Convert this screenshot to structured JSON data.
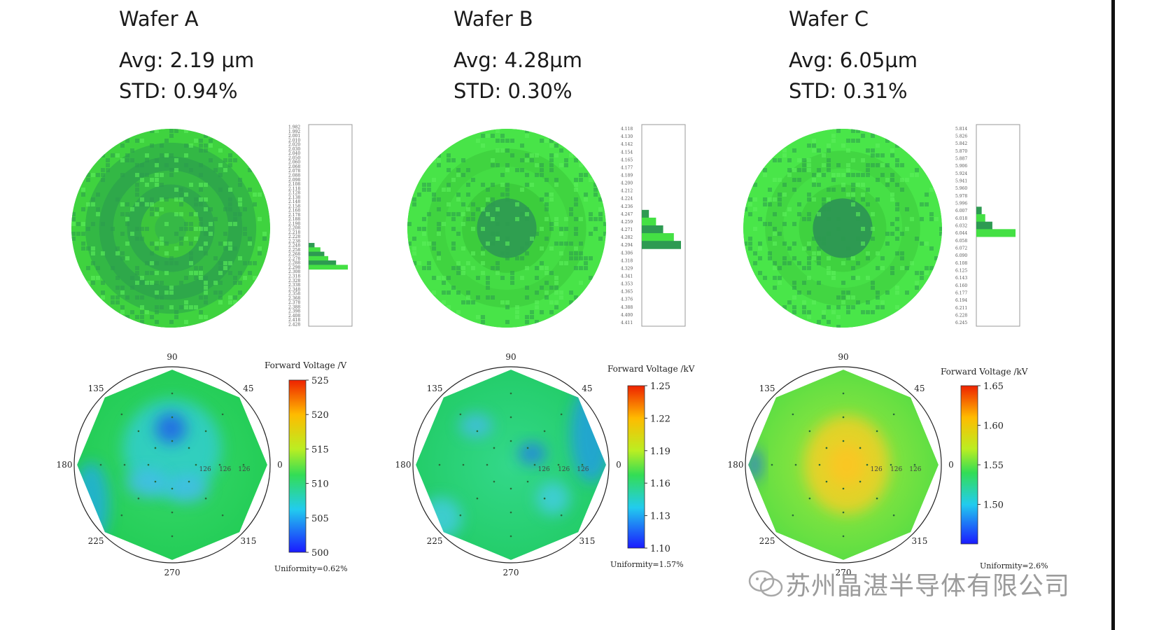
{
  "headers": [
    {
      "name": "Wafer A",
      "avg": "Avg: 2.19 µm",
      "std": "STD: 0.94%"
    },
    {
      "name": "Wafer B",
      "avg": "Avg: 4.28µm",
      "std": "STD: 0.30%"
    },
    {
      "name": "Wafer C",
      "avg": "Avg: 6.05µm",
      "std": "STD: 0.31%"
    }
  ],
  "colors": {
    "wafer_light": "#44e044",
    "wafer_dark": "#2ea84a",
    "wafer_mid": "#3bcb3b",
    "scale_low": "#1a1aff",
    "scale_high": "#ee2200"
  },
  "chart_data": [
    {
      "type": "heatmap",
      "title": "Wafer A",
      "histogram_scale_labels": [
        "1.982",
        "1.992",
        "2.001",
        "2.010",
        "2.020",
        "2.030",
        "2.040",
        "2.050",
        "2.060",
        "2.068",
        "2.078",
        "2.088",
        "2.098",
        "2.108",
        "2.118",
        "2.128",
        "2.138",
        "2.148",
        "2.158",
        "2.168",
        "2.178",
        "2.188",
        "2.198",
        "2.208",
        "2.218",
        "2.228",
        "2.238",
        "2.248",
        "2.258",
        "2.268",
        "2.278",
        "2.288",
        "2.298",
        "2.308",
        "2.318",
        "2.328",
        "2.338",
        "2.348",
        "2.358",
        "2.368",
        "2.378",
        "2.388",
        "2.398",
        "2.408",
        "2.418",
        "2.428"
      ],
      "histogram_counts": [
        0,
        0,
        0,
        0,
        0,
        0,
        0,
        0,
        0,
        0,
        0,
        0,
        0,
        0,
        0,
        0,
        0,
        0,
        0,
        0,
        0,
        0,
        0,
        0,
        0,
        0,
        0,
        3,
        6,
        8,
        10,
        14,
        20,
        0,
        0,
        0,
        0,
        0,
        0,
        0,
        0,
        0,
        0,
        0,
        0,
        0
      ]
    },
    {
      "type": "heatmap",
      "title": "Wafer B",
      "histogram_scale_labels": [
        "4.118",
        "4.130",
        "4.142",
        "4.154",
        "4.165",
        "4.177",
        "4.189",
        "4.200",
        "4.212",
        "4.224",
        "4.236",
        "4.247",
        "4.259",
        "4.271",
        "4.282",
        "4.294",
        "4.306",
        "4.318",
        "4.329",
        "4.341",
        "4.353",
        "4.365",
        "4.376",
        "4.388",
        "4.400",
        "4.411"
      ],
      "histogram_counts": [
        0,
        0,
        0,
        0,
        0,
        0,
        0,
        0,
        0,
        0,
        0,
        4,
        8,
        12,
        18,
        22,
        0,
        0,
        0,
        0,
        0,
        0,
        0,
        0,
        0,
        0
      ]
    },
    {
      "type": "heatmap",
      "title": "Wafer C",
      "histogram_scale_labels": [
        "5.814",
        "5.826",
        "5.842",
        "5.870",
        "5.887",
        "5.906",
        "5.924",
        "5.941",
        "5.960",
        "5.978",
        "5.996",
        "6.007",
        "6.018",
        "6.032",
        "6.044",
        "6.058",
        "6.072",
        "6.090",
        "6.108",
        "6.125",
        "6.143",
        "6.160",
        "6.177",
        "6.194",
        "6.211",
        "6.228",
        "6.245"
      ],
      "histogram_counts": [
        0,
        0,
        0,
        0,
        0,
        0,
        0,
        0,
        0,
        0,
        0,
        3,
        5,
        9,
        22,
        0,
        0,
        0,
        0,
        0,
        0,
        0,
        0,
        0,
        0,
        0,
        0
      ]
    },
    {
      "type": "heatmap",
      "title": "Forward Voltage /V",
      "angle_labels": [
        "90",
        "45",
        "0",
        "315",
        "270",
        "225",
        "180",
        "135"
      ],
      "radial_labels": [
        "126",
        "126",
        "126"
      ],
      "colorbar_ticks": [
        "525",
        "520",
        "515",
        "510",
        "505",
        "500"
      ],
      "colorbar_range": [
        500,
        525
      ],
      "uniformity": "Uniformity=0.62%"
    },
    {
      "type": "heatmap",
      "title": "Forward Voltage /kV",
      "angle_labels": [
        "90",
        "45",
        "0",
        "315",
        "270",
        "225",
        "180",
        "135"
      ],
      "radial_labels": [
        "126",
        "126",
        "126"
      ],
      "colorbar_ticks": [
        "1.25",
        "1.22",
        "1.19",
        "1.16",
        "1.13",
        "1.10"
      ],
      "colorbar_range": [
        1.1,
        1.25
      ],
      "uniformity": "Uniformity=1.57%"
    },
    {
      "type": "heatmap",
      "title": "Forward Voltage /kV",
      "angle_labels": [
        "90",
        "45",
        "0",
        "315",
        "270",
        "225",
        "180",
        "135"
      ],
      "radial_labels": [
        "126",
        "126",
        "126"
      ],
      "colorbar_ticks": [
        "1.65",
        "1.60",
        "1.55",
        "1.50"
      ],
      "colorbar_range": [
        1.45,
        1.65
      ],
      "uniformity": "Uniformity=2.6%"
    }
  ],
  "watermark": {
    "text": "苏州晶湛半导体有限公司",
    "icon": "wechat-icon"
  }
}
